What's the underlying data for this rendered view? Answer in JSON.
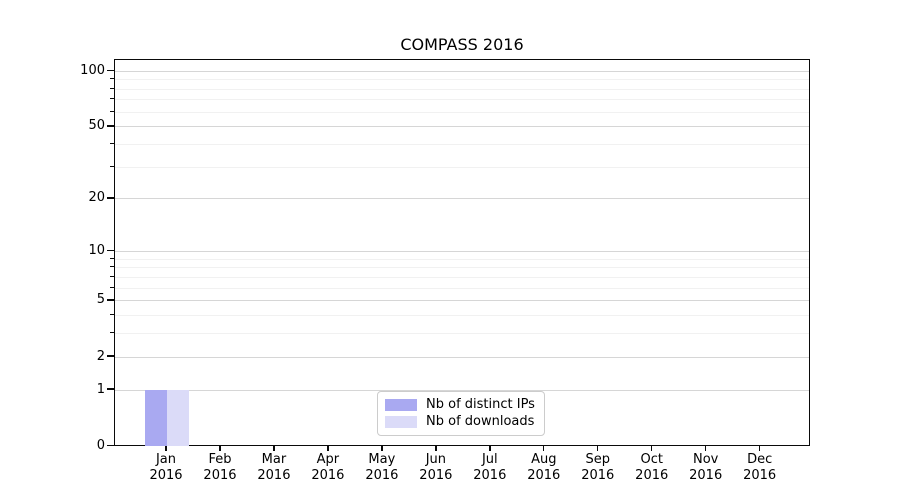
{
  "title": "COMPASS 2016",
  "chart_data": {
    "type": "bar",
    "title": "COMPASS 2016",
    "categories": [
      "Jan",
      "Feb",
      "Mar",
      "Apr",
      "May",
      "Jun",
      "Jul",
      "Aug",
      "Sep",
      "Oct",
      "Nov",
      "Dec"
    ],
    "category_year_suffix": "2016",
    "series": [
      {
        "name": "Nb of distinct IPs",
        "color": "#a9a9f1",
        "values": [
          1,
          0,
          0,
          0,
          0,
          0,
          0,
          0,
          0,
          0,
          0,
          0
        ]
      },
      {
        "name": "Nb of downloads",
        "color": "#dbdbf8",
        "values": [
          1,
          0,
          0,
          0,
          0,
          0,
          0,
          0,
          0,
          0,
          0,
          0
        ]
      }
    ],
    "xlabel": "",
    "ylabel": "",
    "yscale": "log1p",
    "y_major_ticks": [
      0,
      1,
      2,
      5,
      10,
      20,
      50,
      100
    ],
    "y_minor_ticks": [
      3,
      4,
      6,
      7,
      8,
      9,
      30,
      40,
      60,
      70,
      80,
      90
    ],
    "ylim": [
      0,
      115
    ],
    "grid": "horizontal",
    "legend_position": "lower center",
    "colors": {
      "grid_major": "#d6d6d6",
      "grid_minor": "#f1f1f1",
      "spine": "#0a0a0a",
      "legend_border": "#cccccc",
      "background": "#ffffff"
    }
  }
}
